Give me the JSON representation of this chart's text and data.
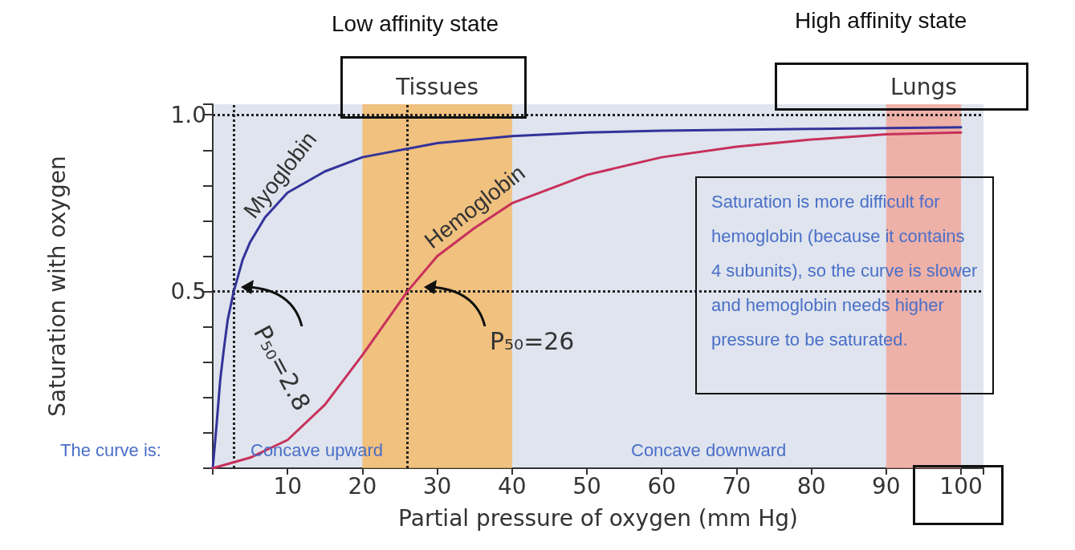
{
  "chart_data": {
    "type": "line",
    "xlabel": "Partial pressure of oxygen (mm Hg)",
    "ylabel": "Saturation with oxygen",
    "xlim": [
      0,
      103
    ],
    "xticks": [
      10,
      20,
      30,
      40,
      50,
      60,
      70,
      80,
      90,
      100
    ],
    "ylim": [
      0,
      1.03
    ],
    "yticks": [
      {
        "value": 0.1,
        "label": null
      },
      {
        "value": 0.2,
        "label": null
      },
      {
        "value": 0.3,
        "label": null
      },
      {
        "value": 0.4,
        "label": null
      },
      0.5,
      {
        "value": 0.6,
        "label": null
      },
      {
        "value": 0.7,
        "label": null
      },
      {
        "value": 0.8,
        "label": null
      },
      {
        "value": 0.9,
        "label": null
      },
      {
        "value": 1,
        "label": "1.0"
      }
    ],
    "grid": false,
    "marker": "none",
    "line_style": "solid",
    "series": [
      {
        "name": "Myoglobin",
        "color": "#33339a",
        "x": [
          0,
          0.5,
          1,
          1.5,
          2,
          2.8,
          4,
          5,
          7,
          10,
          15,
          20,
          30,
          40,
          50,
          60,
          80,
          100
        ],
        "values": [
          0,
          0.12,
          0.25,
          0.34,
          0.42,
          0.5,
          0.59,
          0.64,
          0.71,
          0.78,
          0.84,
          0.88,
          0.92,
          0.94,
          0.95,
          0.955,
          0.96,
          0.965
        ]
      },
      {
        "name": "Hemoglobin",
        "color": "#c8305a",
        "x": [
          0,
          5,
          10,
          15,
          20,
          26,
          30,
          35,
          40,
          50,
          60,
          70,
          80,
          90,
          100
        ],
        "values": [
          0,
          0.03,
          0.08,
          0.18,
          0.32,
          0.5,
          0.6,
          0.68,
          0.75,
          0.83,
          0.88,
          0.91,
          0.93,
          0.945,
          0.95
        ]
      }
    ],
    "bands": [
      {
        "axis": "x",
        "from": 20,
        "to": 40,
        "label": "Tissues",
        "color": "#f6b55a"
      },
      {
        "axis": "x",
        "from": 90,
        "to": 100,
        "label": "Lungs",
        "color": "#f3a090"
      }
    ],
    "ref_lines": [
      {
        "axis": "y",
        "value": 1,
        "line_style": "dotted",
        "color": "#222222"
      },
      {
        "axis": "y",
        "value": 0.5,
        "line_style": "dotted",
        "color": "#222222"
      },
      {
        "axis": "x",
        "value": 2.8,
        "line_style": "dotted",
        "color": "#222222"
      },
      {
        "axis": "x",
        "value": 26,
        "line_style": "dotted",
        "color": "#222222"
      }
    ],
    "annotations": [
      "Low affinity state",
      "High affinity state",
      "P₅₀=2.8",
      "P₅₀=26",
      "Saturation is more difficult for hemoglobin (because it contains 4 subunits), so the curve is slower and hemoglobin needs higher pressure to be saturated.",
      "The curve is:",
      "Concave upward",
      "Concave downward"
    ]
  }
}
